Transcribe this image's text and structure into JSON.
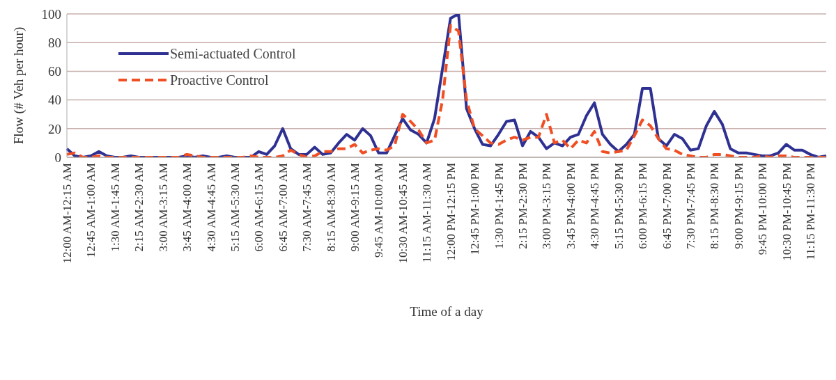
{
  "chart_data": {
    "type": "line",
    "xlabel": "Time of a day",
    "ylabel": "Flow (# Veh per hour)",
    "categories": [
      "12:00 AM-12:15 AM",
      null,
      null,
      "12:45 AM-1:00 AM",
      null,
      null,
      "1:30 AM-1:45 AM",
      null,
      null,
      "2:15 AM-2:30 AM",
      null,
      null,
      "3:00 AM-3:15 AM",
      null,
      null,
      "3:45 AM-4:00 AM",
      null,
      null,
      "4:30 AM-4:45 AM",
      null,
      null,
      "5:15 AM-5:30 AM",
      null,
      null,
      "6:00 AM-6:15 AM",
      null,
      null,
      "6:45 AM-7:00 AM",
      null,
      null,
      "7:30 AM-7:45 AM",
      null,
      null,
      "8:15 AM-8:30 AM",
      null,
      null,
      "9:00 AM-9:15 AM",
      null,
      null,
      "9:45 AM-10:00 AM",
      null,
      null,
      "10:30 AM-10:45 AM",
      null,
      null,
      "11:15 AM-11:30 AM",
      null,
      null,
      "12:00 PM-12:15 PM",
      null,
      null,
      "12:45 PM-1:00 PM",
      null,
      null,
      "1:30 PM-1:45 PM",
      null,
      null,
      "2:15 PM-2:30 PM",
      null,
      null,
      "3:00 PM-3:15 PM",
      null,
      null,
      "3:45 PM-4:00 PM",
      null,
      null,
      "4:30 PM-4:45 PM",
      null,
      null,
      "5:15 PM-5:30 PM",
      null,
      null,
      "6:00 PM-6:15 PM",
      null,
      null,
      "6:45 PM-7:00 PM",
      null,
      null,
      "7:30 PM-7:45 PM",
      null,
      null,
      "8:15 PM-8:30 PM",
      null,
      null,
      "9:00 PM-9:15 PM",
      null,
      null,
      "9:45 PM-10:00 PM",
      null,
      null,
      "10:30 PM-10:45 PM",
      null,
      null,
      "11:15 PM-11:30 PM",
      null,
      null
    ],
    "series": [
      {
        "name": "Semi-actuated Control",
        "color": "#2e3192",
        "line_style": "solid",
        "values": [
          6,
          1,
          0,
          1,
          4,
          1,
          0,
          0,
          1,
          0,
          0,
          0,
          0,
          0,
          0,
          1,
          0,
          1,
          0,
          0,
          1,
          0,
          0,
          0,
          4,
          2,
          8,
          20,
          6,
          2,
          2,
          7,
          2,
          3,
          10,
          16,
          12,
          20,
          15,
          3,
          3,
          15,
          27,
          19,
          16,
          10,
          27,
          62,
          97,
          100,
          34,
          20,
          9,
          8,
          16,
          25,
          26,
          8,
          18,
          14,
          6,
          10,
          8,
          14,
          16,
          29,
          38,
          16,
          9,
          4,
          9,
          16,
          48,
          48,
          13,
          8,
          16,
          13,
          5,
          6,
          22,
          32,
          23,
          6,
          3,
          3,
          2,
          1,
          1,
          3,
          9,
          5,
          5,
          2,
          0,
          1
        ]
      },
      {
        "name": "Proactive Control",
        "color": "#f04e23",
        "line_style": "dashed",
        "values": [
          2,
          3,
          0,
          0,
          1,
          0,
          0,
          0,
          0,
          0,
          0,
          0,
          0,
          0,
          0,
          2,
          1,
          0,
          0,
          0,
          0,
          0,
          0,
          1,
          0,
          0,
          0,
          1,
          5,
          2,
          0,
          1,
          4,
          4,
          6,
          6,
          9,
          3,
          5,
          6,
          5,
          8,
          30,
          25,
          19,
          10,
          12,
          40,
          92,
          88,
          40,
          20,
          15,
          10,
          9,
          12,
          14,
          12,
          14,
          14,
          30,
          10,
          12,
          6,
          12,
          10,
          18,
          4,
          3,
          4,
          5,
          15,
          26,
          22,
          13,
          6,
          5,
          2,
          1,
          0,
          0,
          2,
          2,
          1,
          0,
          0,
          0,
          1,
          0,
          1,
          1,
          0,
          0,
          0,
          0,
          0
        ]
      }
    ],
    "ylim": [
      0,
      100
    ],
    "yticks": [
      0,
      20,
      40,
      60,
      80,
      100
    ],
    "grid": "y",
    "legend": "top left",
    "marker": "none"
  }
}
